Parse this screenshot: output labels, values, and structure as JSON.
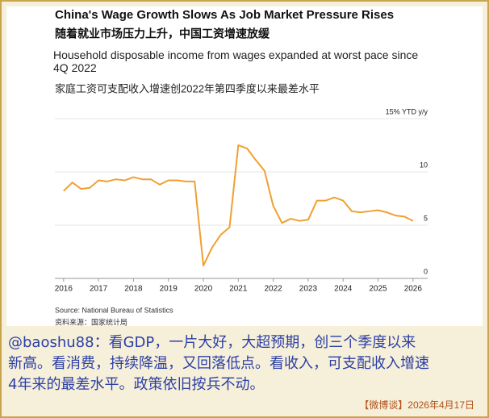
{
  "chart_data": {
    "type": "line",
    "title": "China's Wage Growth Slows As Job Market Pressure Rises",
    "subtitle": "随着就业市场压力上升，中国工资增速放缓",
    "description": "Household disposable income from wages expanded at worst pace since 4Q 2022",
    "description_cn": "家庭工资可支配收入增速创2022年第四季度以来最差水平",
    "source": "Source: National Bureau of Statistics",
    "source_cn": "资料来源：国家统计局",
    "x": [
      2016,
      2016.25,
      2016.5,
      2016.75,
      2017,
      2017.25,
      2017.5,
      2017.75,
      2018,
      2018.25,
      2018.5,
      2018.75,
      2019,
      2019.25,
      2019.5,
      2019.75,
      2020,
      2020.25,
      2020.5,
      2020.75,
      2021,
      2021.25,
      2021.5,
      2021.75,
      2022,
      2022.25,
      2022.5,
      2022.75,
      2023,
      2023.25,
      2023.5,
      2023.75,
      2024,
      2024.25,
      2024.5,
      2024.75,
      2025,
      2025.25,
      2025.5,
      2025.75,
      2026
    ],
    "series": [
      {
        "name": null,
        "color": "#f0a030",
        "values": [
          7.6,
          8.4,
          7.8,
          7.9,
          8.6,
          8.5,
          8.7,
          8.6,
          8.9,
          8.7,
          8.7,
          8.2,
          8.6,
          8.6,
          8.5,
          8.5,
          0.6,
          2.3,
          3.5,
          4.2,
          11.9,
          11.6,
          10.5,
          9.5,
          6.2,
          4.6,
          5.0,
          4.8,
          4.9,
          6.7,
          6.7,
          7.0,
          6.7,
          5.7,
          5.6,
          5.7,
          5.8,
          5.6,
          5.3,
          5.2,
          4.8
        ]
      }
    ],
    "xlim": [
      2015.75,
      2026.42
    ],
    "xticks": [
      2016,
      2017,
      2018,
      2019,
      2020,
      2021,
      2022,
      2023,
      2024,
      2025,
      2026
    ],
    "ylim": [
      -0.6,
      15
    ],
    "yticks": [
      0,
      5,
      10,
      {
        "value": 15,
        "label": "15% YTD y/y"
      }
    ],
    "grid": true
  },
  "comment": {
    "lines": [
      "@baoshu88：看GDP，一片大好，大超预期，创三个季度以来",
      "新高。看消费，持续降温，又回落低点。看收入，可支配收入增速",
      "4年来的最差水平。政策依旧按兵不动。"
    ],
    "date": "【微博谈】2026年4月17日"
  }
}
